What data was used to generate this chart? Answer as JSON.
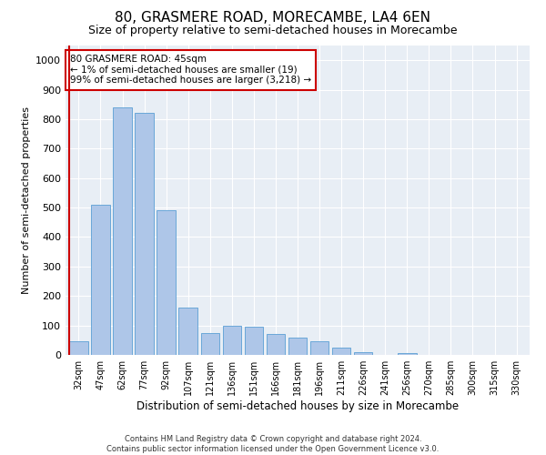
{
  "title": "80, GRASMERE ROAD, MORECAMBE, LA4 6EN",
  "subtitle": "Size of property relative to semi-detached houses in Morecambe",
  "xlabel": "Distribution of semi-detached houses by size in Morecambe",
  "ylabel": "Number of semi-detached properties",
  "categories": [
    "32sqm",
    "47sqm",
    "62sqm",
    "77sqm",
    "92sqm",
    "107sqm",
    "121sqm",
    "136sqm",
    "151sqm",
    "166sqm",
    "181sqm",
    "196sqm",
    "211sqm",
    "226sqm",
    "241sqm",
    "256sqm",
    "270sqm",
    "285sqm",
    "300sqm",
    "315sqm",
    "330sqm"
  ],
  "values": [
    45,
    510,
    840,
    820,
    490,
    160,
    75,
    100,
    95,
    70,
    60,
    45,
    25,
    10,
    0,
    5,
    0,
    0,
    0,
    0,
    0
  ],
  "bar_color": "#aec6e8",
  "bar_edge_color": "#5a9fd4",
  "highlight_bar_index": 0,
  "highlight_line_color": "#cc0000",
  "annotation_text": "80 GRASMERE ROAD: 45sqm\n← 1% of semi-detached houses are smaller (19)\n99% of semi-detached houses are larger (3,218) →",
  "annotation_box_color": "#ffffff",
  "annotation_border_color": "#cc0000",
  "ylim": [
    0,
    1050
  ],
  "yticks": [
    0,
    100,
    200,
    300,
    400,
    500,
    600,
    700,
    800,
    900,
    1000
  ],
  "background_color": "#e8eef5",
  "footer_line1": "Contains HM Land Registry data © Crown copyright and database right 2024.",
  "footer_line2": "Contains public sector information licensed under the Open Government Licence v3.0.",
  "title_fontsize": 11,
  "subtitle_fontsize": 9,
  "xlabel_fontsize": 8.5,
  "ylabel_fontsize": 8
}
